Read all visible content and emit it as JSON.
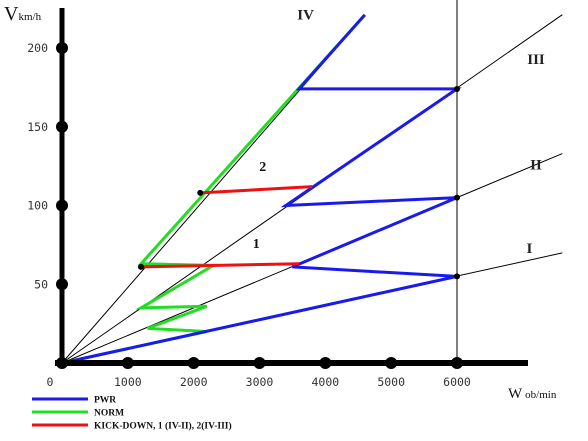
{
  "chart_data": {
    "type": "line",
    "title": "",
    "ylabel_main": "V",
    "ylabel_sub": "km/h",
    "xlabel_main": "W",
    "xlabel_sub": "ob/min",
    "xlim": [
      0,
      6000
    ],
    "ylim": [
      0,
      200
    ],
    "x_ticks": [
      "0",
      "1000",
      "2000",
      "3000",
      "4000",
      "5000",
      "6000"
    ],
    "y_ticks": [
      "50",
      "100",
      "150",
      "200"
    ],
    "gear_labels": [
      "I",
      "II",
      "III",
      "IV"
    ],
    "gear_ratios_kmh_per_rpm": [
      0.0092,
      0.0175,
      0.0291,
      0.048
    ],
    "kickdown_labels": [
      "2",
      "1"
    ],
    "series": [
      {
        "name": "PWR",
        "color": "#1a1aee",
        "points": [
          [
            0,
            0
          ],
          [
            6000,
            55
          ],
          [
            3500,
            61
          ],
          [
            6000,
            105
          ],
          [
            3400,
            100
          ],
          [
            6000,
            174
          ],
          [
            3600,
            174
          ],
          [
            4600,
            221
          ]
        ]
      },
      {
        "name": "NORM",
        "color": "#22dd22",
        "points": [
          [
            0,
            0
          ],
          [
            2200,
            20
          ],
          [
            1300,
            22
          ],
          [
            2200,
            36
          ],
          [
            1200,
            35
          ],
          [
            2300,
            62
          ],
          [
            1200,
            63
          ],
          [
            4600,
            221
          ]
        ]
      },
      {
        "name": "KICK-DOWN, 1 (IV-II), 2(IV-III)",
        "color": "#ee1111",
        "segments": [
          [
            [
              1200,
              61
            ],
            [
              3600,
              63
            ]
          ],
          [
            [
              2100,
              108
            ],
            [
              3800,
              112
            ]
          ]
        ]
      }
    ],
    "shift_points": [
      [
        6000,
        55
      ],
      [
        6000,
        105
      ],
      [
        6000,
        174
      ],
      [
        1200,
        61
      ],
      [
        2100,
        108
      ]
    ],
    "legend_position": "bottom-left",
    "grid": false
  }
}
